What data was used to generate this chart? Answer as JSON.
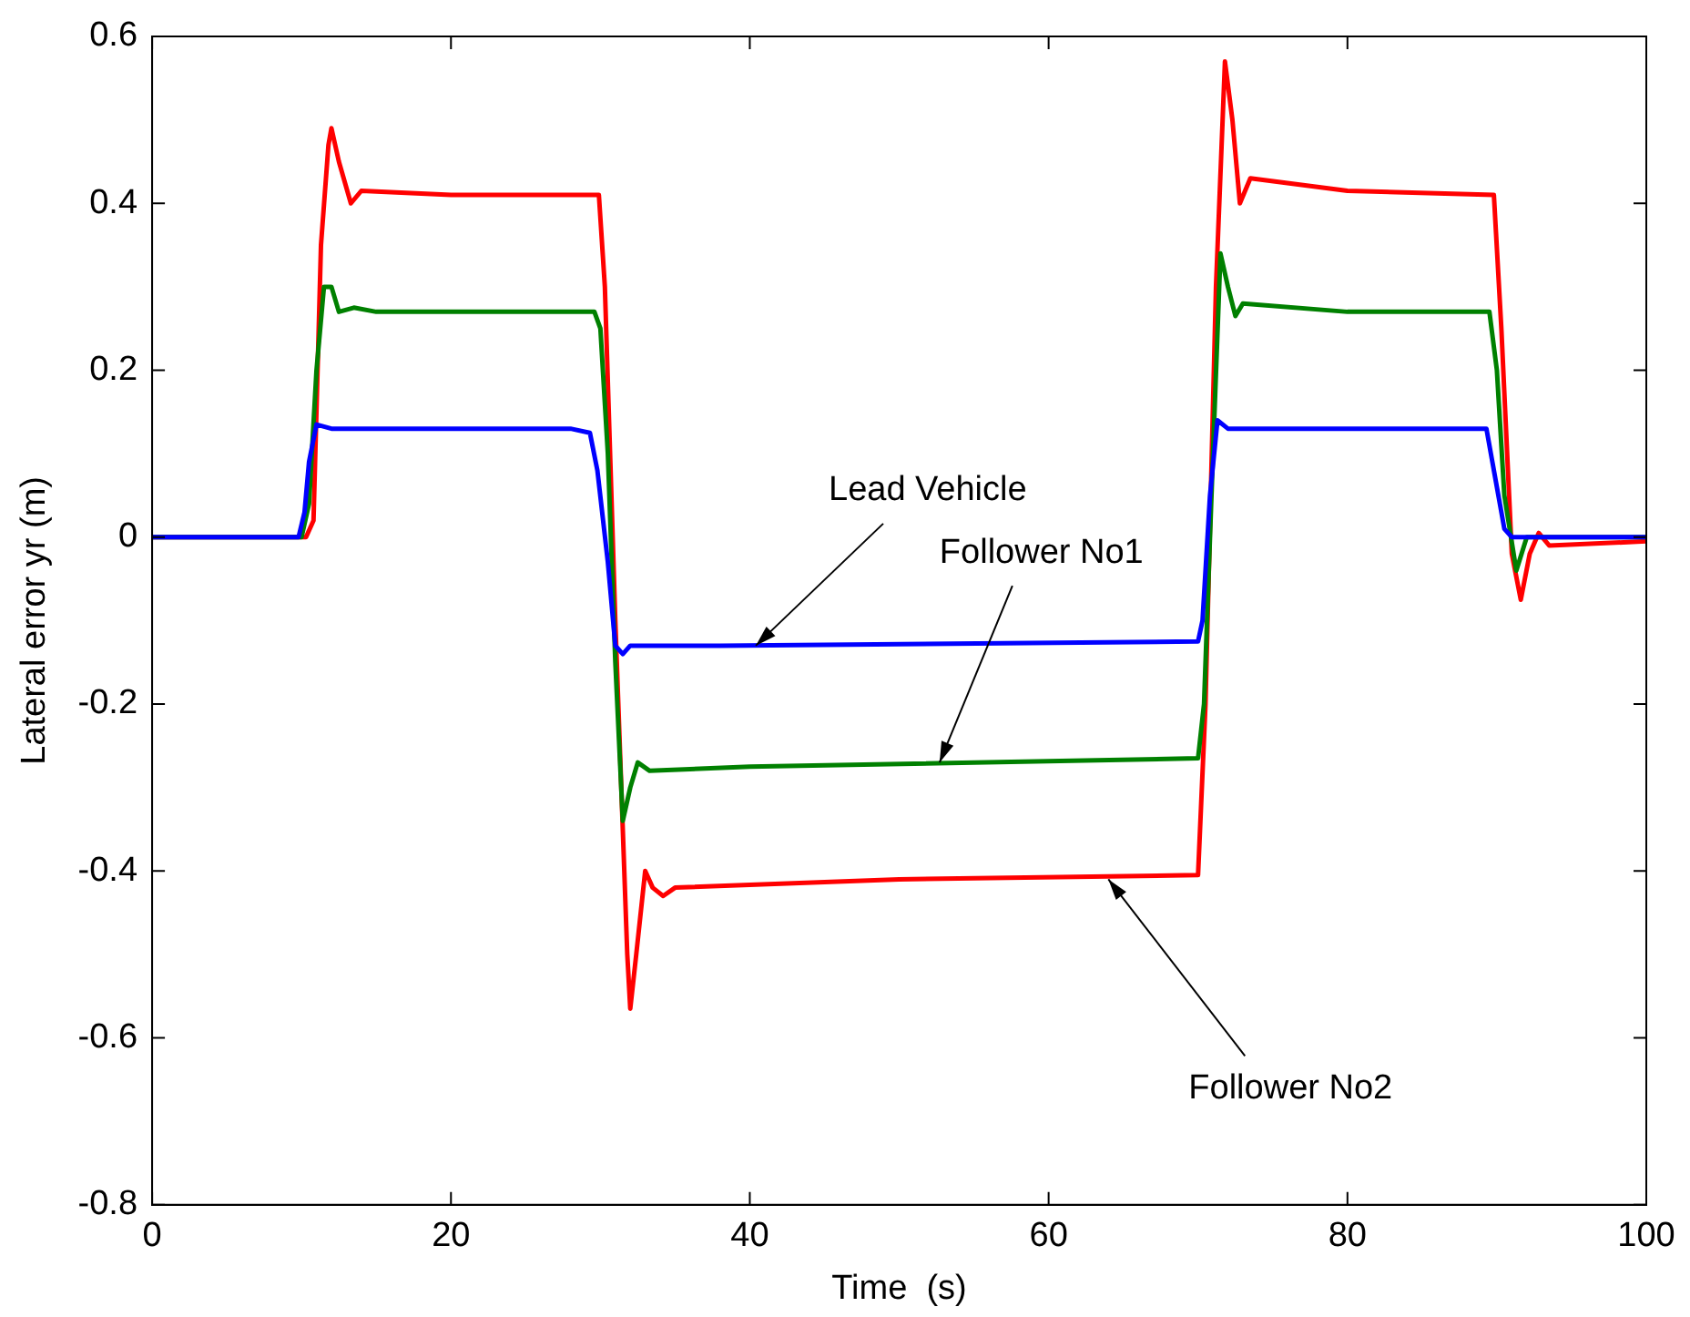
{
  "chart_data": {
    "type": "line",
    "xlabel": "Time  (s)",
    "ylabel": "Lateral error yr (m)",
    "xlim": [
      0,
      100
    ],
    "xticks": [
      0,
      20,
      40,
      60,
      80,
      100
    ],
    "ylim": [
      -0.8,
      0.6
    ],
    "yticks": [
      -0.8,
      -0.6,
      -0.4,
      -0.2,
      0,
      0.2,
      0.4,
      0.6
    ],
    "grid": false,
    "legend": false,
    "marker": "none",
    "line_style": "solid",
    "series": [
      {
        "color": "#0000ff",
        "x": [
          0,
          9.8,
          10.2,
          10.5,
          11,
          12,
          28,
          29.3,
          29.8,
          30.5,
          31,
          31.5,
          32,
          38,
          70,
          70.3,
          70.8,
          71.3,
          72,
          89.3,
          89.8,
          90.5,
          91,
          100
        ],
        "values": [
          0,
          0,
          0.03,
          0.09,
          0.135,
          0.13,
          0.13,
          0.125,
          0.08,
          -0.03,
          -0.13,
          -0.14,
          -0.13,
          -0.13,
          -0.125,
          -0.1,
          0.05,
          0.14,
          0.13,
          0.13,
          0.08,
          0.01,
          0,
          0
        ]
      },
      {
        "color": "#008000",
        "x": [
          0,
          10,
          10.5,
          11,
          11.5,
          12,
          12.5,
          13.5,
          15,
          29.6,
          30,
          30.5,
          31,
          31.5,
          32,
          32.5,
          33.3,
          40,
          70,
          70.4,
          71,
          71.5,
          72,
          72.5,
          73,
          80,
          89.5,
          90,
          90.5,
          91.3,
          92,
          93,
          100
        ],
        "values": [
          0,
          0,
          0.04,
          0.2,
          0.3,
          0.3,
          0.27,
          0.275,
          0.27,
          0.27,
          0.25,
          0.1,
          -0.15,
          -0.34,
          -0.3,
          -0.27,
          -0.28,
          -0.275,
          -0.265,
          -0.2,
          0.1,
          0.34,
          0.3,
          0.265,
          0.28,
          0.27,
          0.27,
          0.2,
          0.05,
          -0.04,
          0,
          0,
          0
        ]
      },
      {
        "color": "#ff0000",
        "x": [
          0,
          10.3,
          10.8,
          11.3,
          11.8,
          12,
          12.5,
          13.3,
          14,
          20,
          29.9,
          30.3,
          31,
          31.8,
          32,
          32.4,
          33,
          33.5,
          34.2,
          35,
          50,
          70,
          70.5,
          71.2,
          71.8,
          72.3,
          72.8,
          73.5,
          80,
          89.8,
          90.3,
          91,
          91.6,
          92.2,
          92.8,
          93.5,
          100
        ],
        "values": [
          0,
          0,
          0.02,
          0.35,
          0.47,
          0.49,
          0.45,
          0.4,
          0.415,
          0.41,
          0.41,
          0.3,
          -0.1,
          -0.5,
          -0.565,
          -0.5,
          -0.4,
          -0.42,
          -0.43,
          -0.42,
          -0.41,
          -0.405,
          -0.2,
          0.3,
          0.57,
          0.5,
          0.4,
          0.43,
          0.415,
          0.41,
          0.25,
          -0.02,
          -0.075,
          -0.02,
          0.005,
          -0.01,
          -0.005
        ]
      }
    ],
    "annotations": [
      {
        "text": "Lead Vehicle",
        "x": 40.4,
        "y": -0.13
      },
      {
        "text": "Follower No1",
        "x": 52.7,
        "y": -0.27
      },
      {
        "text": "Follower No2",
        "x": 64,
        "y": -0.41
      }
    ]
  }
}
